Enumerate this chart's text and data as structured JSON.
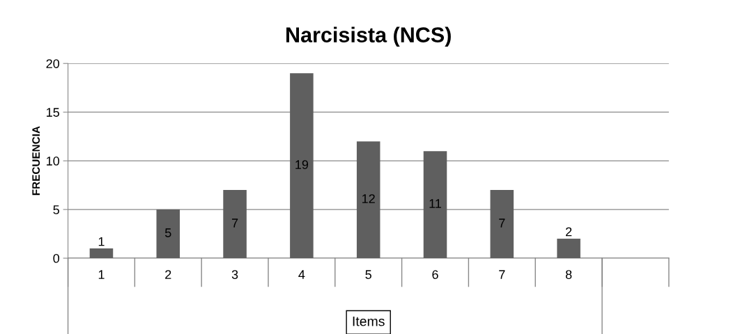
{
  "chart_data": {
    "type": "bar",
    "title": "Narcisista (NCS)",
    "xlabel": "Items",
    "ylabel": "FRECUENCIA",
    "categories": [
      "1",
      "2",
      "3",
      "4",
      "5",
      "6",
      "7",
      "8",
      null
    ],
    "values": [
      1,
      5,
      7,
      19,
      12,
      11,
      7,
      2,
      null
    ],
    "color": "#5f5f5f",
    "ylim": [
      0,
      20
    ],
    "yticks": [
      0,
      5,
      10,
      15,
      20
    ],
    "grid": "y",
    "data_labels": true
  }
}
